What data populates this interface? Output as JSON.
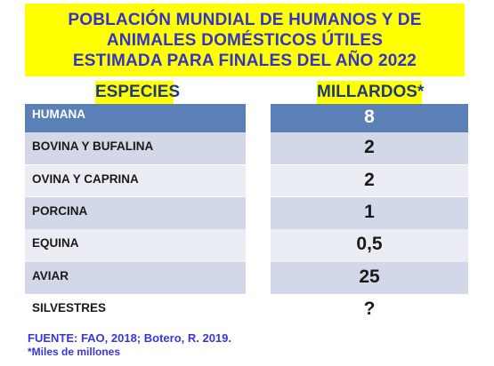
{
  "title": {
    "line1": "POBLACIÓN MUNDIAL DE HUMANOS Y DE",
    "line2": "ANIMALES DOMÉSTICOS ÚTILES",
    "line3": "ESTIMADA PARA FINALES DEL AÑO 2022"
  },
  "colors": {
    "title_background": "#ffff00",
    "title_text": "#3333cc",
    "header_text": "#1f3a7a",
    "first_row": "#5b80b8",
    "row_dark": "#d3d8e8",
    "row_light": "#eaedf4",
    "footer_text": "#3a36d9"
  },
  "chart_data": {
    "type": "table",
    "columns": [
      "ESPECIES",
      "MILLARDOS*"
    ],
    "rows": [
      {
        "species": "HUMANA",
        "value": "8"
      },
      {
        "species": "BOVINA Y BUFALINA",
        "value": "2"
      },
      {
        "species": "OVINA Y CAPRINA",
        "value": "2"
      },
      {
        "species": "PORCINA",
        "value": "1"
      },
      {
        "species": "EQUINA",
        "value": "0,5"
      },
      {
        "species": "AVIAR",
        "value": "25"
      },
      {
        "species": "SILVESTRES",
        "value": "?"
      }
    ]
  },
  "footer": {
    "source": "FUENTE:  FAO, 2018; Botero, R.  2019.",
    "note": "*Miles de millones"
  }
}
